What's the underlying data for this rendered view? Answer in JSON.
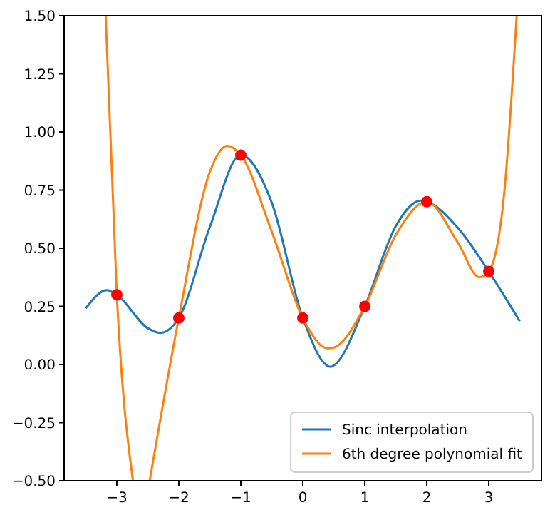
{
  "chart_data": {
    "type": "line",
    "xlim": [
      -3.85,
      3.85
    ],
    "ylim": [
      -0.5,
      1.5
    ],
    "xticks": [
      {
        "value": -3,
        "label": "−3"
      },
      {
        "value": -2,
        "label": "−2"
      },
      {
        "value": -1,
        "label": "−1"
      },
      0,
      1,
      2,
      3
    ],
    "yticks": [
      {
        "value": -0.5,
        "label": "−0.50"
      },
      {
        "value": -0.25,
        "label": "−0.25"
      },
      {
        "value": 0,
        "label": "0.00"
      },
      {
        "value": 0.25,
        "label": "0.25"
      },
      {
        "value": 0.5,
        "label": "0.50"
      },
      {
        "value": 0.75,
        "label": "0.75"
      },
      {
        "value": 1,
        "label": "1.00"
      },
      {
        "value": 1.25,
        "label": "1.25"
      },
      {
        "value": 1.5,
        "label": "1.50"
      }
    ],
    "grid": false,
    "legend": "bottom right",
    "line_style": "solid",
    "series": [
      {
        "name": "Sinc interpolation",
        "type": "line",
        "color": "#1f77b4",
        "marker": "none",
        "x": [
          -3.5,
          -3.16,
          -3,
          -2.5,
          -2.3,
          -2,
          -1.5,
          -1,
          -0.5,
          0,
          0.45,
          0.5,
          1,
          1.5,
          1.9,
          2,
          2.5,
          3,
          3.5
        ],
        "values": [
          0.242,
          0.32,
          0.3,
          0.156,
          0.136,
          0.2,
          0.591,
          0.9,
          0.696,
          0.2,
          -0.01,
          -0.004,
          0.25,
          0.595,
          0.705,
          0.7,
          0.588,
          0.4,
          0.186
        ]
      },
      {
        "name": "6th degree polynomial fit",
        "type": "line",
        "color": "#ff7f0e",
        "marker": "none",
        "x": [
          -3.18,
          -3,
          -2.74,
          -2.6,
          -2.47,
          -2,
          -1.5,
          -1.22,
          -1,
          -0.5,
          0,
          0.4,
          0.5,
          1,
          1.5,
          2,
          2.5,
          2.85,
          3,
          3.25,
          3.45
        ],
        "values": [
          1.5,
          0.3,
          -0.5,
          null,
          -0.5,
          0.2,
          0.828,
          0.94,
          0.9,
          0.571,
          0.2,
          0.07,
          0.073,
          0.25,
          0.557,
          0.7,
          0.525,
          0.375,
          0.4,
          0.74,
          1.5
        ]
      },
      {
        "type": "scatter",
        "color": "#ff0000",
        "marker": "circle",
        "x": [
          -3,
          -2,
          -1,
          0,
          1,
          2,
          3
        ],
        "values": [
          0.3,
          0.2,
          0.9,
          0.2,
          0.25,
          0.7,
          0.4
        ]
      }
    ]
  }
}
